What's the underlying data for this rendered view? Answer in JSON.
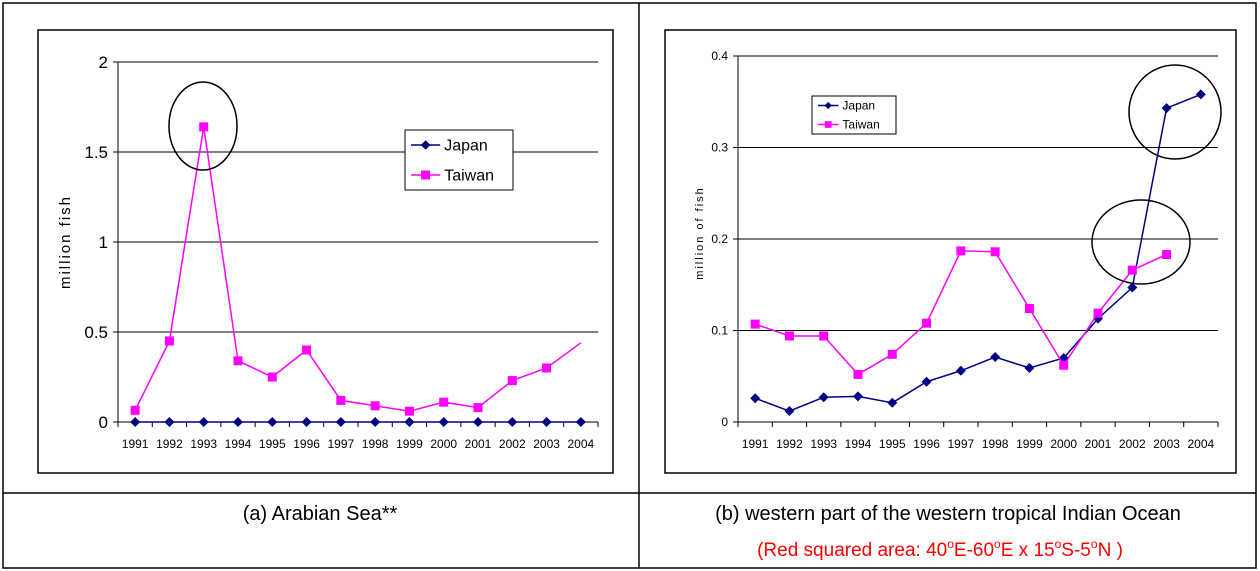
{
  "chart_data": [
    {
      "type": "line",
      "caption": "(a) Arabian Sea**",
      "ylabel": "million fish",
      "ylim": [
        0,
        2
      ],
      "yticks": [
        "0",
        "0.5",
        "1",
        "1.5",
        "2"
      ],
      "categories": [
        "1991",
        "1992",
        "1993",
        "1994",
        "1995",
        "1996",
        "1997",
        "1998",
        "1999",
        "2000",
        "2001",
        "2002",
        "2003",
        "2004"
      ],
      "legend_position": "top-right",
      "grid": true,
      "series": [
        {
          "name": "Japan",
          "color": "#000080",
          "marker": "diamond",
          "values": [
            0,
            0,
            0,
            0,
            0,
            0,
            0,
            0,
            0,
            0,
            0,
            0,
            0,
            0
          ]
        },
        {
          "name": "Taiwan",
          "color": "#ff00ff",
          "marker": "square",
          "values": [
            0.065,
            0.45,
            1.64,
            0.34,
            0.25,
            0.4,
            0.12,
            0.09,
            0.06,
            0.11,
            0.08,
            0.23,
            0.3,
            0.44
          ],
          "last_point_unmarked": true
        }
      ],
      "annotations": [
        {
          "type": "ellipse",
          "category": "1993"
        }
      ]
    },
    {
      "type": "line",
      "caption": "(b) western part of the western tropical Indian Ocean",
      "note": {
        "prefix": "(Red squared area: 40",
        "sup1": "o",
        "mid1": "E-60",
        "sup2": "o",
        "mid2": "E x 15",
        "sup3": "o",
        "mid3": "S-5",
        "sup4": "o",
        "suffix": "N )",
        "color": "#ff0000"
      },
      "ylabel": "million of fish",
      "ylim": [
        0,
        0.4
      ],
      "yticks": [
        "0",
        "0.1",
        "0.2",
        "0.3",
        "0.4"
      ],
      "categories": [
        "1991",
        "1992",
        "1993",
        "1994",
        "1995",
        "1996",
        "1997",
        "1998",
        "1999",
        "2000",
        "2001",
        "2002",
        "2003",
        "2004"
      ],
      "legend_position": "top-left",
      "grid": true,
      "series": [
        {
          "name": "Japan",
          "color": "#000080",
          "marker": "diamond",
          "values": [
            0.026,
            0.012,
            0.027,
            0.028,
            0.021,
            0.044,
            0.056,
            0.071,
            0.059,
            0.07,
            0.113,
            0.147,
            0.343,
            0.358
          ]
        },
        {
          "name": "Taiwan",
          "color": "#ff00ff",
          "marker": "square",
          "values": [
            0.107,
            0.094,
            0.094,
            0.052,
            0.074,
            0.108,
            0.187,
            0.186,
            0.124,
            0.062,
            0.119,
            0.166,
            0.183,
            null
          ]
        }
      ],
      "annotations": [
        {
          "type": "ellipse",
          "category": "2003-2004"
        },
        {
          "type": "ellipse",
          "category": "2002-2003"
        }
      ]
    }
  ]
}
